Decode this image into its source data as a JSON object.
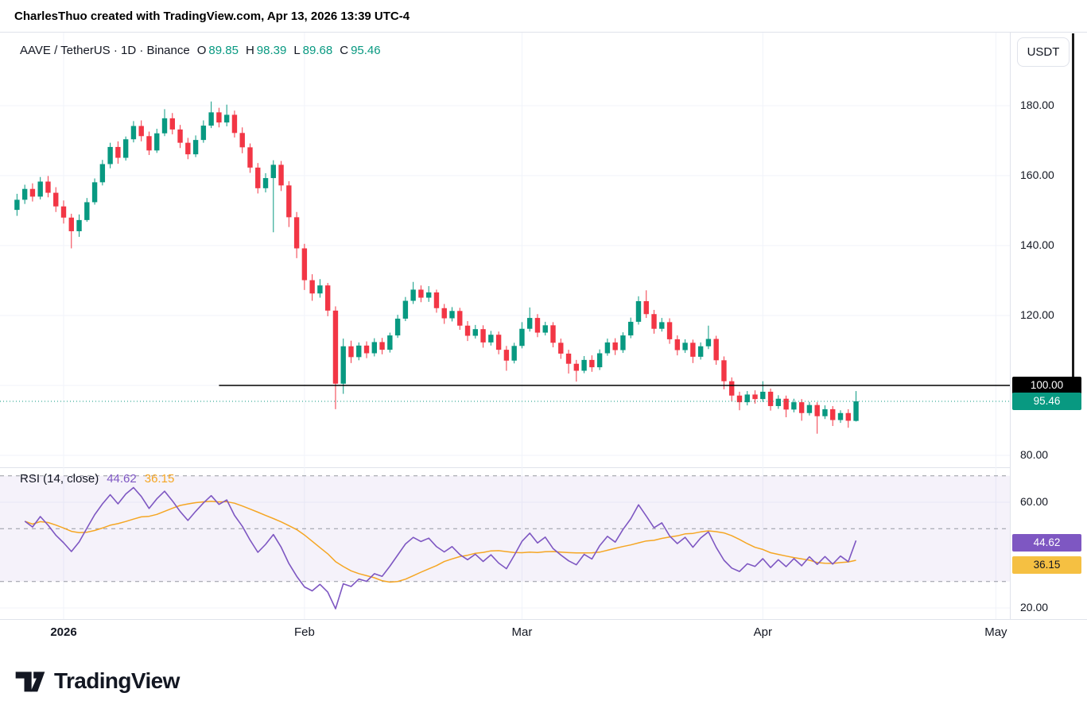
{
  "header": {
    "attribution": "CharlesThuo created with TradingView.com, Apr 13, 2026 13:39 UTC-4"
  },
  "legend": {
    "symbol": "AAVE / TetherUS · 1D · Binance",
    "ohlc": [
      {
        "label": "O",
        "value": "89.85"
      },
      {
        "label": "H",
        "value": "98.39"
      },
      {
        "label": "L",
        "value": "89.68"
      },
      {
        "label": "C",
        "value": "95.46"
      }
    ]
  },
  "price_axis": {
    "currency": "USDT",
    "line_label": "100.00",
    "last_label": "95.46"
  },
  "rsi": {
    "title": "RSI (14, close)",
    "value": "44.62",
    "ma_value": "36.15"
  },
  "footer": {
    "logo_text": "TradingView"
  },
  "colors": {
    "up": "#089981",
    "down": "#f23645",
    "rsi_line": "#7e57c2",
    "rsi_ma": "#f5a623",
    "rsi_ma_badge": "#f5c042",
    "line_tool": "#000000",
    "grid": "#f0f3fa",
    "separator": "#e0e3eb",
    "band_dash": "#9598a1",
    "rsi_band_fill": "rgba(126,87,194,0.08)",
    "badge_line_bg": "#000000",
    "badge_last_bg": "#089981",
    "axis_text": "#131722"
  },
  "chart_data": {
    "type": "candlestick",
    "title": "AAVE / TetherUS · 1D · Binance",
    "symbol": "AAVE/USDT",
    "interval": "1D",
    "exchange": "Binance",
    "last_ohlc": {
      "open": 89.85,
      "high": 98.39,
      "low": 89.68,
      "close": 95.46
    },
    "y_axis": {
      "ticks": [
        180,
        160,
        140,
        120,
        100,
        80
      ],
      "visible_range": [
        77,
        201
      ]
    },
    "x_axis": {
      "labels": [
        {
          "text": "2026",
          "index": 6
        },
        {
          "text": "Feb",
          "index": 37
        },
        {
          "text": "Mar",
          "index": 65
        },
        {
          "text": "Apr",
          "index": 96
        },
        {
          "text": "May",
          "index": 126
        }
      ]
    },
    "horizontal_line": {
      "price": 100.0,
      "label": "100.00",
      "start_index": 26
    },
    "indicator": {
      "name": "RSI (14, close)",
      "last_value": 44.62,
      "ma_last_value": 36.15,
      "upper_band": 70,
      "middle": 50,
      "lower_band": 30,
      "axis_ticks": [
        60,
        20
      ]
    },
    "candles": [
      [
        150.2,
        154.8,
        148.5,
        153.1
      ],
      [
        153.1,
        157.4,
        151.9,
        156.2
      ],
      [
        156.2,
        157.8,
        152.6,
        154.0
      ],
      [
        154.0,
        159.6,
        153.2,
        158.3
      ],
      [
        158.3,
        159.9,
        153.8,
        155.1
      ],
      [
        155.1,
        156.7,
        149.6,
        151.2
      ],
      [
        151.2,
        152.9,
        146.3,
        148.0
      ],
      [
        148.0,
        149.1,
        139.2,
        144.1
      ],
      [
        144.1,
        148.9,
        142.5,
        147.3
      ],
      [
        147.3,
        153.6,
        146.8,
        152.4
      ],
      [
        152.4,
        159.2,
        151.7,
        158.1
      ],
      [
        158.1,
        164.5,
        157.2,
        163.3
      ],
      [
        163.3,
        169.4,
        162.1,
        168.2
      ],
      [
        168.2,
        169.8,
        163.4,
        165.1
      ],
      [
        165.1,
        171.2,
        164.3,
        170.4
      ],
      [
        170.4,
        175.6,
        169.5,
        174.2
      ],
      [
        174.2,
        175.8,
        169.8,
        171.3
      ],
      [
        171.3,
        172.6,
        165.9,
        167.2
      ],
      [
        167.2,
        173.4,
        166.5,
        172.1
      ],
      [
        172.1,
        179.0,
        171.3,
        176.4
      ],
      [
        176.4,
        177.9,
        171.8,
        173.2
      ],
      [
        173.2,
        174.5,
        167.9,
        169.4
      ],
      [
        169.4,
        170.8,
        164.7,
        166.1
      ],
      [
        166.1,
        171.5,
        165.3,
        170.2
      ],
      [
        170.2,
        175.8,
        169.4,
        174.3
      ],
      [
        174.3,
        181.2,
        173.6,
        178.1
      ],
      [
        178.1,
        179.4,
        173.8,
        175.2
      ],
      [
        175.2,
        180.3,
        174.1,
        177.4
      ],
      [
        177.4,
        178.6,
        170.9,
        172.2
      ],
      [
        172.2,
        173.8,
        166.4,
        168.1
      ],
      [
        168.1,
        169.2,
        160.8,
        162.3
      ],
      [
        162.3,
        163.6,
        154.9,
        156.4
      ],
      [
        156.4,
        160.7,
        155.2,
        159.3
      ],
      [
        159.3,
        164.4,
        143.8,
        163.1
      ],
      [
        163.1,
        164.2,
        155.6,
        157.2
      ],
      [
        157.2,
        158.4,
        145.3,
        148.1
      ],
      [
        148.1,
        149.6,
        136.4,
        139.2
      ],
      [
        139.2,
        140.5,
        127.3,
        130.1
      ],
      [
        130.1,
        131.8,
        124.2,
        126.3
      ],
      [
        126.3,
        130.4,
        125.1,
        128.6
      ],
      [
        128.6,
        129.3,
        119.8,
        121.4
      ],
      [
        121.4,
        122.6,
        93.2,
        100.5
      ],
      [
        100.5,
        113.4,
        97.6,
        111.2
      ],
      [
        111.2,
        112.8,
        106.4,
        108.1
      ],
      [
        108.1,
        112.3,
        107.2,
        111.4
      ],
      [
        111.4,
        112.6,
        107.8,
        109.2
      ],
      [
        109.2,
        113.5,
        108.3,
        112.4
      ],
      [
        112.4,
        113.6,
        108.9,
        110.2
      ],
      [
        110.2,
        115.1,
        109.4,
        114.3
      ],
      [
        114.3,
        120.2,
        113.6,
        119.1
      ],
      [
        119.1,
        125.3,
        118.4,
        124.2
      ],
      [
        124.2,
        129.6,
        123.3,
        127.4
      ],
      [
        127.4,
        128.6,
        123.8,
        125.1
      ],
      [
        125.1,
        128.4,
        123.9,
        126.6
      ],
      [
        126.6,
        127.4,
        120.8,
        122.1
      ],
      [
        122.1,
        123.3,
        117.6,
        119.2
      ],
      [
        119.2,
        122.4,
        118.3,
        121.3
      ],
      [
        121.3,
        122.2,
        115.9,
        117.1
      ],
      [
        117.1,
        118.4,
        112.7,
        114.2
      ],
      [
        114.2,
        117.3,
        113.4,
        116.1
      ],
      [
        116.1,
        117.2,
        110.8,
        112.3
      ],
      [
        112.3,
        115.6,
        111.4,
        114.5
      ],
      [
        114.5,
        115.4,
        108.9,
        110.2
      ],
      [
        110.2,
        111.3,
        104.2,
        107.1
      ],
      [
        107.1,
        112.2,
        106.3,
        111.3
      ],
      [
        111.3,
        118.1,
        110.6,
        116.2
      ],
      [
        116.2,
        122.3,
        115.4,
        119.3
      ],
      [
        119.3,
        120.4,
        113.8,
        115.1
      ],
      [
        115.1,
        118.2,
        114.3,
        117.2
      ],
      [
        117.2,
        118.1,
        110.9,
        112.2
      ],
      [
        112.2,
        113.4,
        107.6,
        109.1
      ],
      [
        109.1,
        110.2,
        103.4,
        106.2
      ],
      [
        106.2,
        107.3,
        101.1,
        104.2
      ],
      [
        104.2,
        108.4,
        103.5,
        107.3
      ],
      [
        107.3,
        108.6,
        103.9,
        105.2
      ],
      [
        105.2,
        110.3,
        104.4,
        109.2
      ],
      [
        109.2,
        113.4,
        108.5,
        112.3
      ],
      [
        112.3,
        113.5,
        108.7,
        110.1
      ],
      [
        110.1,
        115.2,
        109.3,
        114.3
      ],
      [
        114.3,
        119.4,
        113.5,
        118.2
      ],
      [
        118.2,
        125.5,
        117.4,
        124.1
      ],
      [
        124.1,
        127.2,
        119.3,
        120.4
      ],
      [
        120.4,
        121.6,
        114.8,
        116.2
      ],
      [
        116.2,
        119.3,
        115.4,
        118.1
      ],
      [
        118.1,
        119.2,
        111.9,
        113.2
      ],
      [
        113.2,
        114.3,
        108.6,
        110.1
      ],
      [
        110.1,
        113.2,
        109.3,
        112.2
      ],
      [
        112.2,
        113.1,
        106.4,
        108.2
      ],
      [
        108.2,
        112.3,
        107.4,
        111.2
      ],
      [
        111.2,
        117.1,
        110.4,
        113.3
      ],
      [
        113.3,
        114.2,
        105.9,
        107.2
      ],
      [
        107.2,
        108.3,
        98.9,
        101.2
      ],
      [
        101.2,
        102.3,
        95.4,
        97.1
      ],
      [
        97.1,
        98.2,
        92.9,
        95.2
      ],
      [
        95.2,
        98.4,
        94.3,
        97.4
      ],
      [
        97.4,
        98.6,
        94.8,
        96.1
      ],
      [
        96.1,
        101.2,
        95.3,
        98.2
      ],
      [
        98.2,
        99.1,
        92.8,
        94.1
      ],
      [
        94.1,
        97.2,
        93.3,
        96.2
      ],
      [
        96.2,
        97.1,
        90.9,
        93.1
      ],
      [
        93.1,
        96.2,
        92.3,
        95.2
      ],
      [
        95.2,
        96.1,
        89.9,
        92.1
      ],
      [
        92.1,
        95.3,
        91.4,
        94.4
      ],
      [
        94.4,
        95.2,
        86.2,
        91.2
      ],
      [
        91.2,
        94.3,
        90.4,
        93.2
      ],
      [
        93.2,
        94.1,
        88.4,
        90.1
      ],
      [
        90.1,
        92.9,
        89.3,
        92.1
      ],
      [
        92.1,
        93.2,
        87.9,
        89.9
      ],
      [
        89.85,
        98.39,
        89.68,
        95.46
      ]
    ]
  }
}
